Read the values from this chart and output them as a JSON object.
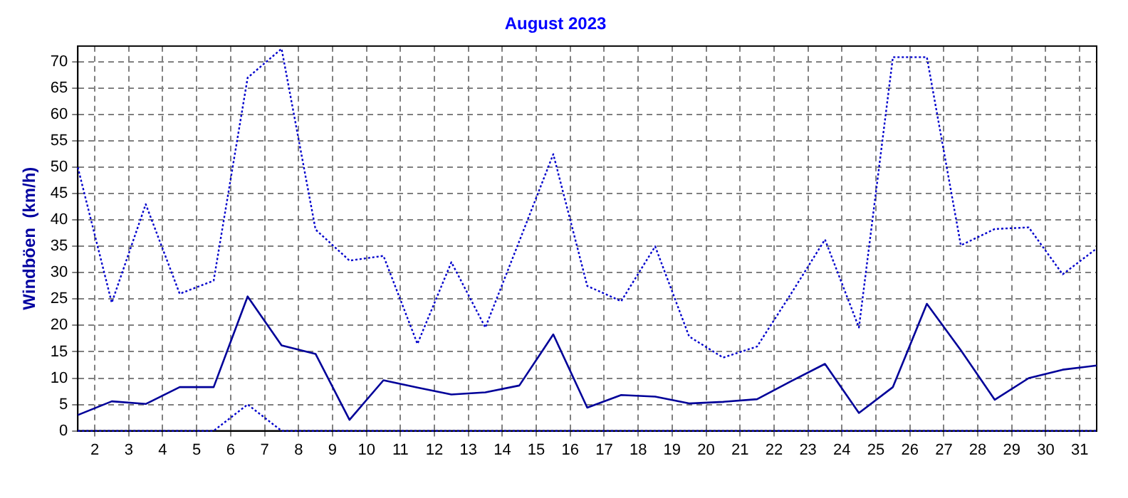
{
  "chart_data": {
    "type": "line",
    "title": "August 2023",
    "ylabel": "Windböen  (km/h)",
    "x": [
      1.5,
      2.5,
      3.5,
      4.5,
      5.5,
      6.5,
      7.5,
      8.5,
      9.5,
      10.5,
      11.5,
      12.5,
      13.5,
      14.5,
      15.5,
      16.5,
      17.5,
      18.5,
      19.5,
      20.5,
      21.5,
      22.5,
      23.5,
      24.5,
      25.5,
      26.5,
      27.5,
      28.5,
      29.5,
      30.5,
      31.5
    ],
    "xlim": [
      1.5,
      31.5
    ],
    "xticks": [
      2,
      3,
      4,
      5,
      6,
      7,
      8,
      9,
      10,
      11,
      12,
      13,
      14,
      15,
      16,
      17,
      18,
      19,
      20,
      21,
      22,
      23,
      24,
      25,
      26,
      27,
      28,
      29,
      30,
      31
    ],
    "ylim": [
      0,
      73
    ],
    "yticks": [
      0,
      5,
      10,
      15,
      20,
      25,
      30,
      35,
      40,
      45,
      50,
      55,
      60,
      65,
      70
    ],
    "grid": true,
    "legend": false,
    "marker": "none",
    "series": [
      {
        "color": "#0000cc",
        "line_style": "dotted",
        "values": [
          50,
          24.3,
          43,
          26,
          28.5,
          67,
          72.5,
          38.2,
          32.3,
          33.2,
          16.5,
          32,
          19.6,
          36,
          52.5,
          27.5,
          24.6,
          35,
          17.9,
          13.9,
          16,
          26,
          36.3,
          19.6,
          70.9,
          70.9,
          35.2,
          38.3,
          38.6,
          29.7,
          34.6
        ]
      },
      {
        "color": "#000099",
        "line_style": "solid",
        "values": [
          3,
          5.6,
          5.1,
          8.3,
          8.3,
          25.5,
          16.2,
          14.6,
          2.1,
          9.6,
          8.2,
          6.9,
          7.3,
          8.6,
          18.3,
          4.4,
          6.8,
          6.5,
          5.2,
          5.5,
          6,
          9.4,
          12.7,
          3.4,
          8.3,
          24.1,
          15.3,
          5.9,
          10,
          11.6,
          12.4
        ]
      },
      {
        "color": "#0000cc",
        "line_style": "dotted",
        "values": [
          0,
          0,
          0,
          0,
          0,
          5,
          0,
          0,
          0,
          0,
          0,
          0,
          0,
          0,
          0,
          0,
          0,
          0,
          0,
          0,
          0,
          0,
          0,
          0,
          0,
          0,
          0,
          0,
          0,
          0,
          0
        ]
      }
    ]
  }
}
